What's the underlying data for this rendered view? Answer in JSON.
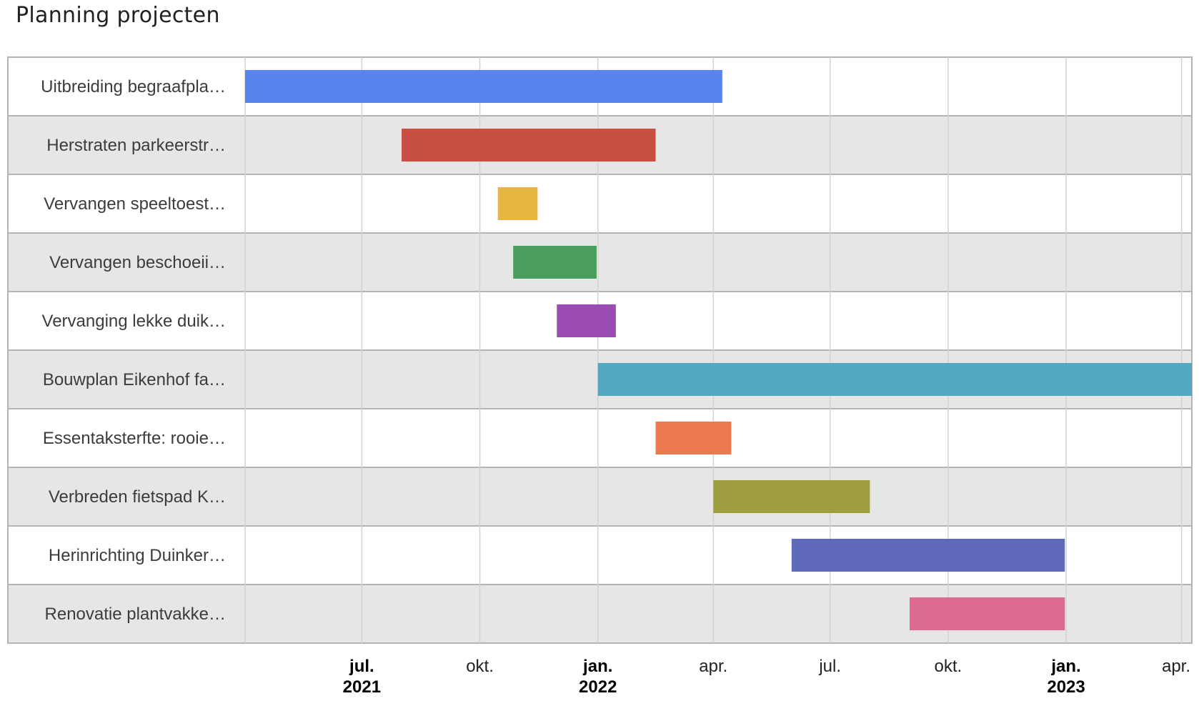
{
  "title": "Planning projecten",
  "chart_data": {
    "type": "gantt",
    "title": "Planning projecten",
    "x_axis": {
      "type": "date",
      "range": [
        "2021-04-01",
        "2023-04-09"
      ],
      "ticks": [
        {
          "date": "2021-07-01",
          "label": "jul.",
          "year": "2021"
        },
        {
          "date": "2021-10-01",
          "label": "okt.",
          "year": ""
        },
        {
          "date": "2022-01-01",
          "label": "jan.",
          "year": "2022"
        },
        {
          "date": "2022-04-01",
          "label": "apr.",
          "year": ""
        },
        {
          "date": "2022-07-01",
          "label": "jul.",
          "year": ""
        },
        {
          "date": "2022-10-01",
          "label": "okt.",
          "year": ""
        },
        {
          "date": "2023-01-01",
          "label": "jan.",
          "year": "2023"
        },
        {
          "date": "2023-04-01",
          "label": "apr.",
          "year": ""
        }
      ]
    },
    "grid": true,
    "tasks": [
      {
        "label": "Uitbreiding begraafpla…",
        "start": "2021-04-01",
        "end": "2022-04-08",
        "color": "#5885ed"
      },
      {
        "label": "Herstraten parkeerstr…",
        "start": "2021-08-01",
        "end": "2022-02-15",
        "color": "#c85043"
      },
      {
        "label": "Vervangen speeltoest…",
        "start": "2021-10-15",
        "end": "2021-11-15",
        "color": "#e7b640"
      },
      {
        "label": "Vervangen beschoeii…",
        "start": "2021-10-27",
        "end": "2021-12-31",
        "color": "#4b9d5c"
      },
      {
        "label": "Vervanging lekke duik…",
        "start": "2021-11-30",
        "end": "2022-01-15",
        "color": "#9c4db4"
      },
      {
        "label": "Bouwplan Eikenhof fa…",
        "start": "2022-01-01",
        "end": "2023-04-09",
        "color": "#53a9c0"
      },
      {
        "label": "Essentaksterfte: rooie…",
        "start": "2022-02-15",
        "end": "2022-04-15",
        "color": "#eb7a4f"
      },
      {
        "label": "Verbreden fietspad K…",
        "start": "2022-04-01",
        "end": "2022-08-01",
        "color": "#9e9e40"
      },
      {
        "label": "Herinrichting Duinker…",
        "start": "2022-06-01",
        "end": "2022-12-31",
        "color": "#5f6bba"
      },
      {
        "label": "Renovatie plantvakke…",
        "start": "2022-09-01",
        "end": "2022-12-31",
        "color": "#dd6b91"
      }
    ],
    "colors": {
      "row_even": "#ffffff",
      "row_odd": "#e6e6e6",
      "grid": "#d2d2d2",
      "row_border": "#b4b4b4"
    }
  }
}
